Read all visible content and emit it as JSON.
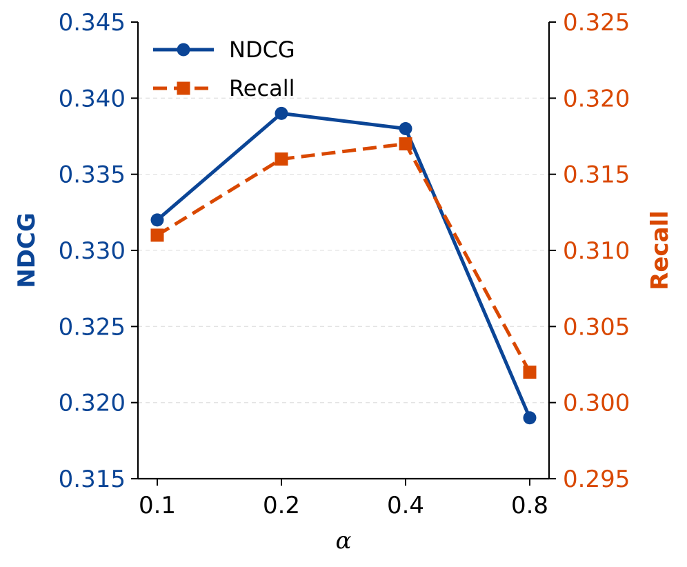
{
  "chart_data": {
    "type": "line",
    "categories": [
      "0.1",
      "0.2",
      "0.4",
      "0.8"
    ],
    "xlabel": "α",
    "y_left": {
      "label": "NDCG",
      "ylim": [
        0.315,
        0.345
      ],
      "ticks": [
        "0.315",
        "0.320",
        "0.325",
        "0.330",
        "0.335",
        "0.340",
        "0.345"
      ],
      "color": "#0b4596"
    },
    "y_right": {
      "label": "Recall",
      "ylim": [
        0.295,
        0.325
      ],
      "ticks": [
        "0.295",
        "0.300",
        "0.305",
        "0.310",
        "0.315",
        "0.320",
        "0.325"
      ],
      "color": "#d94801"
    },
    "series": [
      {
        "name": "NDCG",
        "axis": "left",
        "values": [
          0.332,
          0.339,
          0.338,
          0.319
        ],
        "color": "#0b4596",
        "marker": "circle",
        "linestyle": "solid"
      },
      {
        "name": "Recall",
        "axis": "right",
        "values": [
          0.311,
          0.316,
          0.317,
          0.302
        ],
        "color": "#d94801",
        "marker": "square",
        "linestyle": "dashed"
      }
    ],
    "legend_position": "top-left",
    "grid": "horizontal dashed"
  }
}
